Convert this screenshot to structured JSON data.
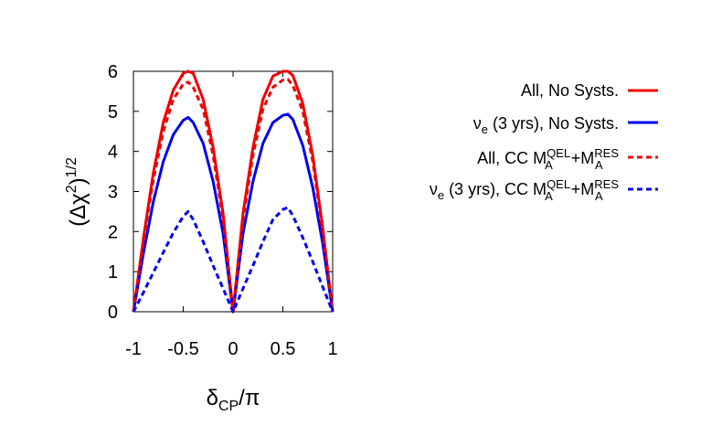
{
  "chart_data": {
    "type": "line",
    "xlabel": "δCP/π",
    "ylabel": "(Δχ2)1/2",
    "xlim": [
      -1,
      1
    ],
    "ylim": [
      0,
      6
    ],
    "xticks": [
      "-1",
      "-0.5",
      "0",
      "0.5",
      "1"
    ],
    "yticks": [
      "0",
      "1",
      "2",
      "3",
      "4",
      "5",
      "6"
    ],
    "grid": false,
    "legend_position": "right",
    "x": [
      -1.0,
      -0.9,
      -0.8,
      -0.7,
      -0.6,
      -0.5,
      -0.45,
      -0.4,
      -0.3,
      -0.2,
      -0.1,
      0.0,
      0.1,
      0.2,
      0.3,
      0.4,
      0.5,
      0.55,
      0.6,
      0.7,
      0.8,
      0.9,
      1.0
    ],
    "series": [
      {
        "name": "All, No Systs.",
        "color": "#ee0000",
        "dash": "solid",
        "values": [
          0.0,
          1.83,
          3.47,
          4.73,
          5.53,
          5.95,
          6.0,
          5.95,
          5.3,
          4.1,
          2.45,
          0.0,
          2.45,
          4.1,
          5.3,
          5.88,
          6.0,
          6.0,
          5.9,
          5.2,
          3.9,
          2.1,
          0.0
        ]
      },
      {
        "name": "νe (3 yrs), No Systs.",
        "color": "#0000ee",
        "dash": "solid",
        "values": [
          0.0,
          1.45,
          2.75,
          3.75,
          4.42,
          4.78,
          4.85,
          4.72,
          4.2,
          3.25,
          1.95,
          0.0,
          1.95,
          3.25,
          4.2,
          4.72,
          4.9,
          4.93,
          4.8,
          4.15,
          3.1,
          1.7,
          0.0
        ]
      },
      {
        "name": "All, CC MAQEL+MARES",
        "color": "#ee0000",
        "dash": "dashed",
        "values": [
          0.0,
          1.75,
          3.3,
          4.5,
          5.3,
          5.68,
          5.73,
          5.6,
          5.05,
          3.9,
          2.3,
          0.0,
          2.3,
          3.9,
          5.05,
          5.6,
          5.78,
          5.8,
          5.65,
          5.0,
          3.75,
          2.0,
          0.0
        ]
      },
      {
        "name": "νe (3 yrs), CC MAQEL+MARES",
        "color": "#0000ee",
        "dash": "dashed",
        "values": [
          0.0,
          0.48,
          0.98,
          1.48,
          1.97,
          2.38,
          2.5,
          2.3,
          1.75,
          1.15,
          0.58,
          0.0,
          0.58,
          1.15,
          1.75,
          2.3,
          2.55,
          2.6,
          2.4,
          1.85,
          1.25,
          0.62,
          0.0
        ]
      }
    ]
  }
}
